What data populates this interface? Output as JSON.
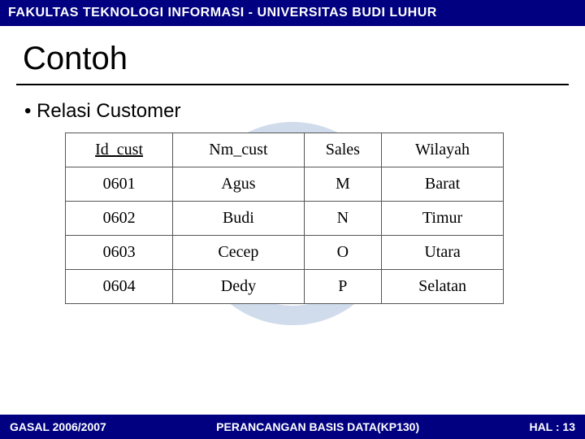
{
  "header": {
    "text": "FAKULTAS TEKNOLOGI INFORMASI - UNIVERSITAS BUDI LUHUR"
  },
  "title": "Contoh",
  "bullet": "• Relasi Customer",
  "table": {
    "columns": [
      "Id_cust",
      "Nm_cust",
      "Sales",
      "Wilayah"
    ],
    "underline_col": 0,
    "rows": [
      [
        "0601",
        "Agus",
        "M",
        "Barat"
      ],
      [
        "0602",
        "Budi",
        "N",
        "Timur"
      ],
      [
        "0603",
        "Cecep",
        "O",
        "Utara"
      ],
      [
        "0604",
        "Dedy",
        "P",
        "Selatan"
      ]
    ]
  },
  "footer": {
    "left": "GASAL 2006/2007",
    "center": "PERANCANGAN BASIS DATA(KP130)",
    "right": "HAL : 13"
  },
  "colors": {
    "bar_bg": "#000080",
    "bar_text": "#ffffff",
    "watermark": "#d0dcec",
    "border": "#555555"
  }
}
